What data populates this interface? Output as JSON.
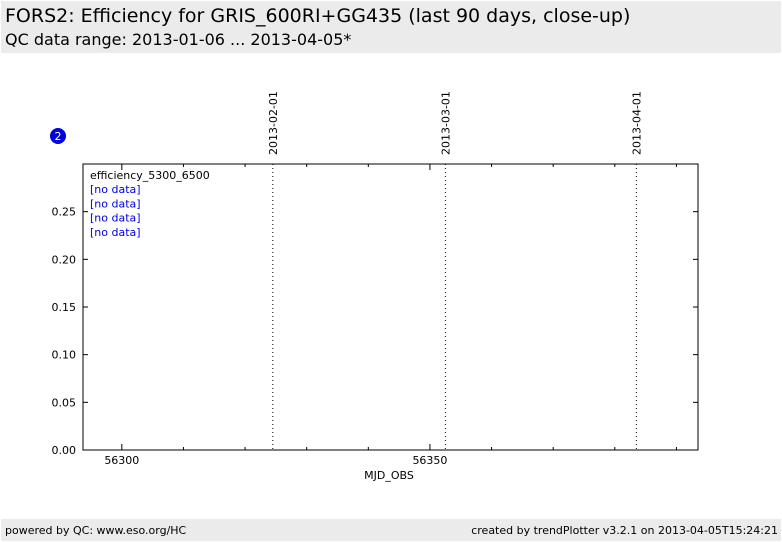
{
  "header": {
    "title": "FORS2: Efficiency for GRIS_600RI+GG435 (last 90 days, close-up)",
    "subtitle": "QC data range: 2013-01-06 ... 2013-04-05*"
  },
  "footer": {
    "left": "powered by QC: www.eso.org/HC",
    "right": "created by trendPlotter v3.2.1 on 2013-04-05T15:24:21"
  },
  "chart_data": {
    "type": "line",
    "badge": "2",
    "xlabel": "MJD_OBS",
    "xlim": [
      56293.7,
      56393.5
    ],
    "xticks": [
      56300,
      56350
    ],
    "xminor_ticks": [
      56310,
      56320,
      56330,
      56340,
      56360,
      56370,
      56380,
      56390
    ],
    "ylim": [
      0,
      0.3
    ],
    "yticks": [
      {
        "value": 0,
        "label": "0.00"
      },
      {
        "value": 0.05,
        "label": "0.05"
      },
      {
        "value": 0.1,
        "label": "0.10"
      },
      {
        "value": 0.15,
        "label": "0.15"
      },
      {
        "value": 0.2,
        "label": "0.20"
      },
      {
        "value": 0.25,
        "label": "0.25"
      }
    ],
    "date_markers": [
      {
        "value": 56324.5,
        "label": "2013-02-01"
      },
      {
        "value": 56352.5,
        "label": "2013-03-01"
      },
      {
        "value": 56383.5,
        "label": "2013-04-01"
      }
    ],
    "legend": {
      "title": "efficiency_5300_6500",
      "entries": [
        "[no data]",
        "[no data]",
        "[no data]",
        "[no data]"
      ],
      "color": "#0000e0"
    }
  }
}
